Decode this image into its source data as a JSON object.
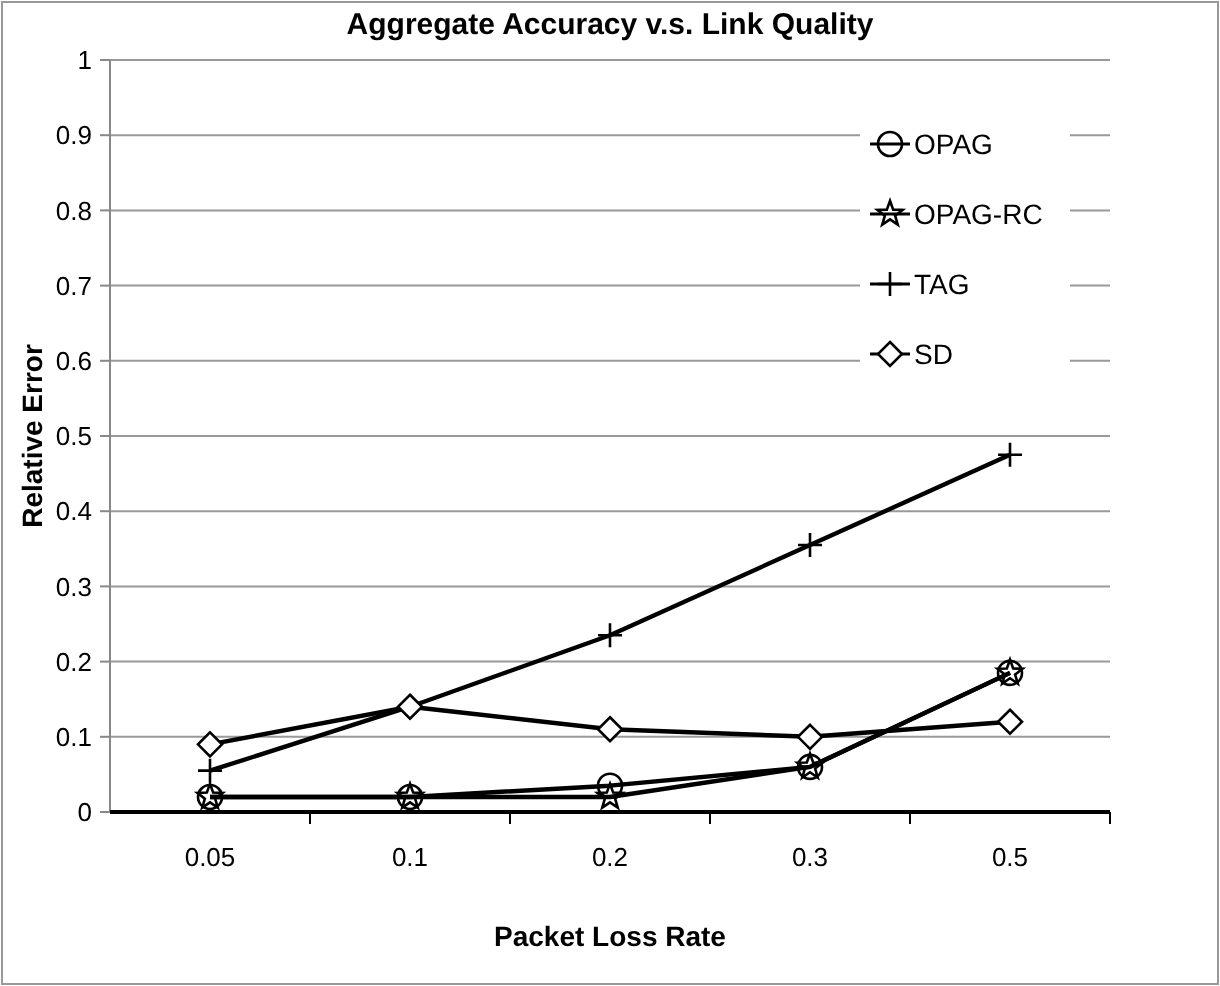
{
  "chart_data": {
    "type": "line",
    "title": "Aggregate Accuracy v.s. Link Quality",
    "xlabel": "Packet Loss Rate",
    "ylabel": "Relative Error",
    "categories": [
      "0.05",
      "0.1",
      "0.2",
      "0.3",
      "0.5"
    ],
    "series": [
      {
        "name": "OPAG",
        "color": "#000000",
        "marker": "circle",
        "values": [
          0.02,
          0.02,
          0.035,
          0.06,
          0.185
        ]
      },
      {
        "name": "OPAG-RC",
        "color": "#000000",
        "marker": "star",
        "values": [
          0.02,
          0.02,
          0.02,
          0.06,
          0.185
        ]
      },
      {
        "name": "TAG",
        "color": "#000000",
        "marker": "cross",
        "values": [
          0.055,
          0.14,
          0.235,
          0.355,
          0.475
        ]
      },
      {
        "name": "SD",
        "color": "#000000",
        "marker": "diamond",
        "values": [
          0.09,
          0.14,
          0.11,
          0.1,
          0.12
        ]
      }
    ],
    "ylim": [
      0,
      1
    ],
    "yticks": [
      0,
      0.1,
      0.2,
      0.3,
      0.4,
      0.5,
      0.6,
      0.7,
      0.8,
      0.9,
      1
    ],
    "grid": "y",
    "legend": "top right",
    "line_style": "solid"
  }
}
